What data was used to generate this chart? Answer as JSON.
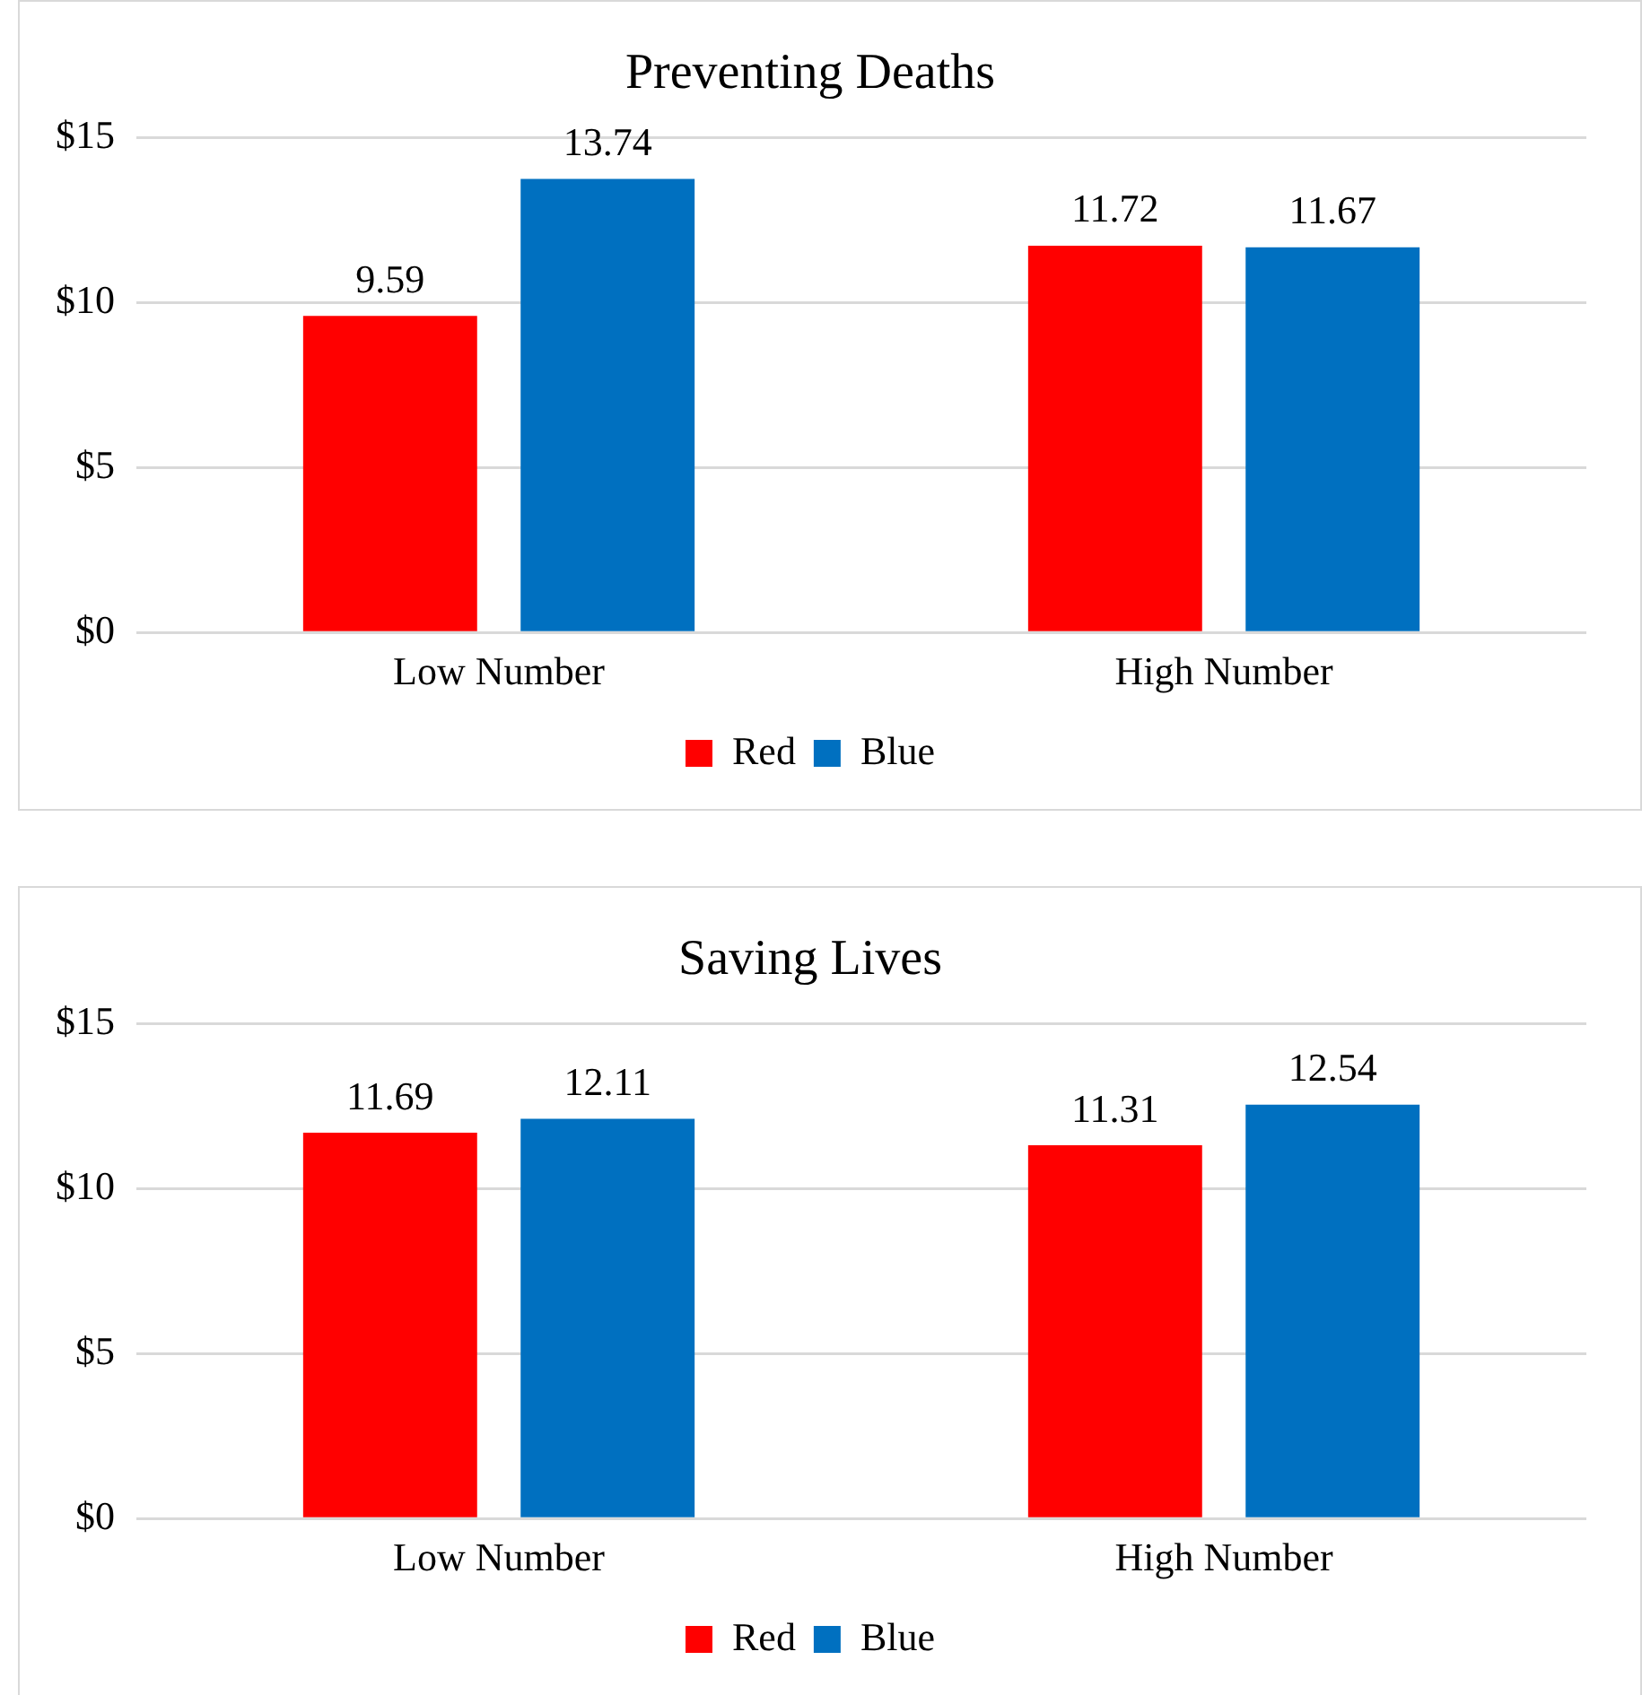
{
  "chart_data": [
    {
      "type": "bar",
      "title": "Preventing Deaths",
      "categories": [
        "Low Number",
        "High Number"
      ],
      "series": [
        {
          "name": "Red",
          "color": "#ff0000",
          "values": [
            9.59,
            11.72
          ]
        },
        {
          "name": "Blue",
          "color": "#0070c0",
          "values": [
            13.74,
            11.67
          ]
        }
      ],
      "ylim": [
        0,
        15
      ],
      "yticks": [
        {
          "value": 0,
          "label": "$0"
        },
        {
          "value": 5,
          "label": "$5"
        },
        {
          "value": 10,
          "label": "$10"
        },
        {
          "value": 15,
          "label": "$15"
        }
      ],
      "grid": "y",
      "legend": "bottom",
      "data_labels": true
    },
    {
      "type": "bar",
      "title": "Saving Lives",
      "categories": [
        "Low Number",
        "High Number"
      ],
      "series": [
        {
          "name": "Red",
          "color": "#ff0000",
          "values": [
            11.69,
            11.31
          ]
        },
        {
          "name": "Blue",
          "color": "#0070c0",
          "values": [
            12.11,
            12.54
          ]
        }
      ],
      "ylim": [
        0,
        15
      ],
      "yticks": [
        {
          "value": 0,
          "label": "$0"
        },
        {
          "value": 5,
          "label": "$5"
        },
        {
          "value": 10,
          "label": "$10"
        },
        {
          "value": 15,
          "label": "$15"
        }
      ],
      "grid": "y",
      "legend": "bottom",
      "data_labels": true
    }
  ]
}
